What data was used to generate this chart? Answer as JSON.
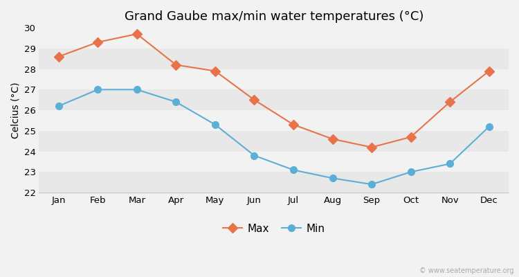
{
  "title": "Grand Gaube max/min water temperatures (°C)",
  "ylabel": "Celcius (°C)",
  "months": [
    "Jan",
    "Feb",
    "Mar",
    "Apr",
    "May",
    "Jun",
    "Jul",
    "Aug",
    "Sep",
    "Oct",
    "Nov",
    "Dec"
  ],
  "max_temps": [
    28.6,
    29.3,
    29.7,
    28.2,
    27.9,
    26.5,
    25.3,
    24.6,
    24.2,
    24.7,
    26.4,
    27.9
  ],
  "min_temps": [
    26.2,
    27.0,
    27.0,
    26.4,
    25.3,
    23.8,
    23.1,
    22.7,
    22.4,
    23.0,
    23.4,
    25.2
  ],
  "max_color": "#e8734a",
  "min_color": "#5bafd6",
  "bg_color": "#f2f2f2",
  "plot_bg_color": "#f2f2f2",
  "band_color": "#e8e8e8",
  "ylim": [
    22,
    30
  ],
  "yticks": [
    22,
    23,
    24,
    25,
    26,
    27,
    28,
    29,
    30
  ],
  "legend_labels": [
    "Max",
    "Min"
  ],
  "watermark": "© www.seatemperature.org",
  "title_fontsize": 13,
  "label_fontsize": 10,
  "tick_fontsize": 9.5
}
